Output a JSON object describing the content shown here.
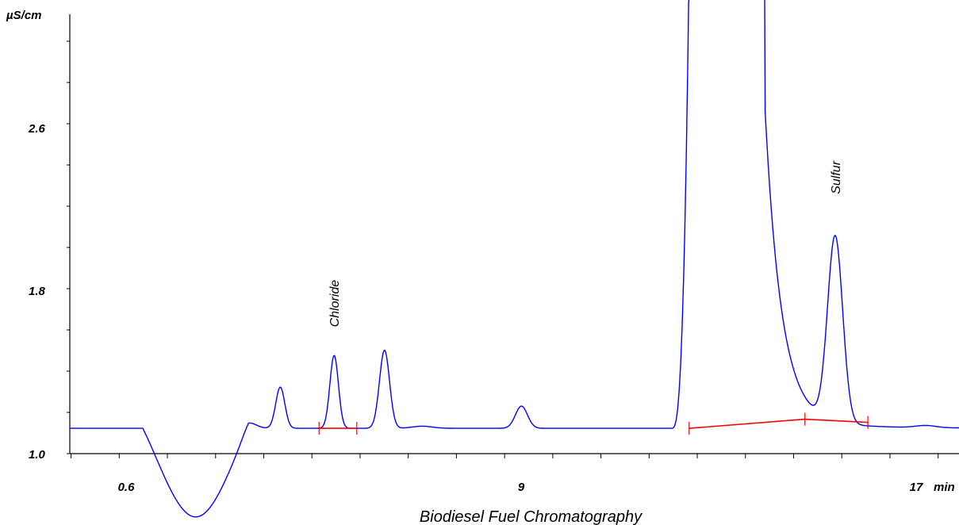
{
  "chart_data": {
    "type": "line",
    "title": "Biodiesel Fuel Chromatography",
    "ylabel": "µS/cm",
    "xlabel": "",
    "x_unit": "min",
    "xlim": [
      0,
      17.66
    ],
    "ylim": [
      1.0,
      3.15
    ],
    "y_tick_labels": [
      "2.6",
      "1.8",
      "1.0"
    ],
    "x_tick_labels": [
      "0.6",
      "9",
      "17"
    ],
    "grid": false,
    "colors": {
      "trace": "#0000ff",
      "baseline": "#ff0000",
      "axis": "#000000"
    },
    "baseline_level": 1.12,
    "dip": {
      "x_start": 1.45,
      "x_end": 3.55,
      "min_y": 0.97
    },
    "peaks": [
      {
        "x": 3.57,
        "height": 0.025,
        "width": 0.14
      },
      {
        "x": 4.18,
        "height": 0.195,
        "width": 0.09
      },
      {
        "x": 5.25,
        "height": 0.345,
        "width": 0.085
      },
      {
        "x": 6.25,
        "height": 0.37,
        "width": 0.1
      },
      {
        "x": 7.0,
        "height": 0.01,
        "width": 0.2
      },
      {
        "x": 8.97,
        "height": 0.105,
        "width": 0.12
      },
      {
        "x": 17.0,
        "height": 0.01,
        "width": 0.2
      }
    ],
    "main_peak": {
      "x_start": 12.3,
      "x_end": 13.8,
      "top": 3.2
    },
    "sulfur_peak": {
      "x": 15.2,
      "height": 0.88,
      "width": 0.15
    },
    "annotations": [
      {
        "text": "Chloride",
        "x": 5.25,
        "y": 1.6
      },
      {
        "text": "Sulfur",
        "x": 15.2,
        "y": 2.23
      }
    ],
    "integration_segments": [
      {
        "name": "Chloride",
        "from": [
          4.95,
          1.12
        ],
        "to": [
          5.7,
          1.12
        ]
      },
      {
        "name": "Sulfur",
        "from": [
          12.3,
          1.12
        ],
        "to": [
          14.6,
          1.163
        ],
        "to2": [
          15.85,
          1.148
        ]
      }
    ]
  }
}
